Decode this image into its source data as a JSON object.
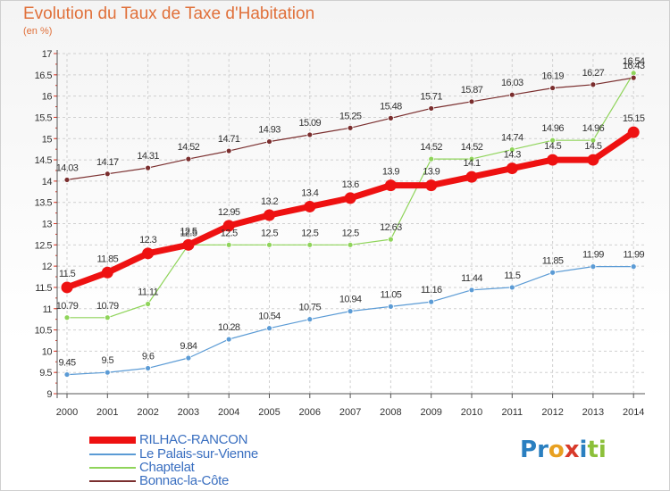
{
  "title": "Evolution du Taux de Taxe d'Habitation",
  "unit_label": "(en %)",
  "logo": {
    "text": "Proxiti",
    "letters": [
      {
        "char": "P",
        "color": "#2a7fc0"
      },
      {
        "char": "r",
        "color": "#2a7fc0"
      },
      {
        "char": "o",
        "color": "#e8a020"
      },
      {
        "char": "x",
        "color": "#d83a2a"
      },
      {
        "char": "i",
        "color": "#2a7fc0"
      },
      {
        "char": "t",
        "color": "#8cc03a"
      },
      {
        "char": "i",
        "color": "#8cc03a"
      }
    ]
  },
  "colors": {
    "grid": "#d0d0d0",
    "axis": "#555555",
    "tick_text": "#333333",
    "axis_ticks_accent": "#d83a2a"
  },
  "chart_data": {
    "type": "line",
    "title": "Evolution du Taux de Taxe d'Habitation",
    "ylabel": "(en %)",
    "xlabel": "",
    "ylim": [
      9,
      17
    ],
    "yticks": [
      "9",
      "9.5",
      "10",
      "10.5",
      "11",
      "11.5",
      "12",
      "12.5",
      "13",
      "13.5",
      "14",
      "14.5",
      "15",
      "15.5",
      "16",
      "16.5",
      "17"
    ],
    "x": [
      "2000",
      "2001",
      "2002",
      "2003",
      "2004",
      "2005",
      "2006",
      "2007",
      "2008",
      "2009",
      "2010",
      "2011",
      "2012",
      "2013",
      "2014"
    ],
    "grid": true,
    "legend_position": "bottom-left",
    "series": [
      {
        "name": "RILHAC-RANCON",
        "color": "#ee1111",
        "emphasis": true,
        "values": [
          11.5,
          11.85,
          12.3,
          12.5,
          12.95,
          13.2,
          13.4,
          13.6,
          13.9,
          13.9,
          14.1,
          14.3,
          14.5,
          14.5,
          15.15
        ],
        "labels": [
          "11.5",
          "11.85",
          "12.3",
          "12.5",
          "12.95",
          "13.2",
          "13.4",
          "13.6",
          "13.9",
          "13.9",
          "14.1",
          "14.3",
          "14.5",
          "14.5",
          "15.15"
        ]
      },
      {
        "name": "Le Palais-sur-Vienne",
        "color": "#5b9bd5",
        "emphasis": false,
        "values": [
          9.45,
          9.5,
          9.6,
          9.84,
          10.28,
          10.54,
          10.75,
          10.94,
          11.05,
          11.16,
          11.44,
          11.5,
          11.85,
          11.99,
          11.99
        ],
        "labels": [
          "9.45",
          "9.5",
          "9.6",
          "9.84",
          "10.28",
          "10.54",
          "10.75",
          "10.94",
          "11.05",
          "11.16",
          "11.44",
          "11.5",
          "11.85",
          "11.99",
          "11.99"
        ]
      },
      {
        "name": "Chaptelat",
        "color": "#8fd45a",
        "emphasis": false,
        "values": [
          10.79,
          10.79,
          11.11,
          12.5,
          12.5,
          12.5,
          12.5,
          12.5,
          12.63,
          14.52,
          14.52,
          14.74,
          14.96,
          14.96,
          16.54
        ],
        "labels": [
          "10.79",
          "10.79",
          "11.11",
          "12.5",
          "12.5",
          "12.5",
          "12.5",
          "12.5",
          "12.63",
          "14.52",
          "14.52",
          "14.74",
          "14.96",
          "14.96",
          "16.54"
        ]
      },
      {
        "name": "Bonnac-la-Côte",
        "color": "#7a2e2e",
        "emphasis": false,
        "values": [
          14.03,
          14.17,
          14.31,
          14.52,
          14.71,
          14.93,
          15.09,
          15.25,
          15.48,
          15.71,
          15.87,
          16.03,
          16.19,
          16.27,
          16.43
        ],
        "labels": [
          "14.03",
          "14.17",
          "14.31",
          "14.52",
          "14.71",
          "14.93",
          "15.09",
          "15.25",
          "15.48",
          "15.71",
          "15.87",
          "16.03",
          "16.19",
          "16.27",
          "16.43"
        ]
      }
    ]
  }
}
